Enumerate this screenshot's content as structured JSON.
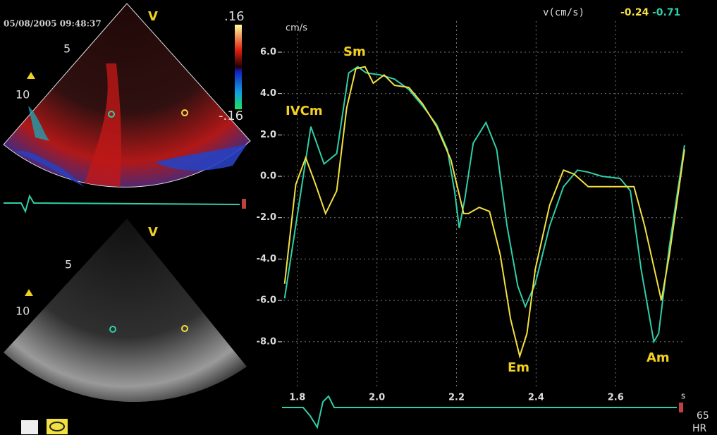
{
  "header": {
    "timestamp": "05/08/2005 09:48:37"
  },
  "color_panel": {
    "mode": "V",
    "scale_top": ".16",
    "scale_bottom": "-.16",
    "depth_labels": [
      "5",
      "10"
    ]
  },
  "gray_panel": {
    "mode": "V",
    "depth_labels": [
      "5",
      "10"
    ]
  },
  "readout": {
    "label": "v(cm/s)",
    "values": [
      "-0.24",
      "-0.71"
    ],
    "colors": [
      "#f2e040",
      "#2fcfa8"
    ]
  },
  "heart_rate": {
    "value": "65",
    "label": "HR"
  },
  "chart_data": {
    "type": "line",
    "y_label": "cm/s",
    "x_label": "s",
    "xlim": [
      1.765,
      2.775
    ],
    "ylim": [
      -9.2,
      7.5
    ],
    "xticks": [
      1.8,
      {
        "value": 2,
        "label": "2.0"
      },
      2.2,
      2.4,
      2.6
    ],
    "yticks": [
      {
        "value": 6,
        "label": "6.0"
      },
      {
        "value": 4,
        "label": "4.0"
      },
      {
        "value": 2,
        "label": "2.0"
      },
      {
        "value": 0,
        "label": "0.0"
      },
      {
        "value": -2,
        "label": "-2.0"
      },
      {
        "value": -4,
        "label": "-4.0"
      },
      {
        "value": -6,
        "label": "-6.0"
      },
      {
        "value": -8,
        "label": "-8.0"
      }
    ],
    "grid": true,
    "annotations": [
      "IVCm",
      "Sm",
      "Em",
      "Am"
    ],
    "series": [
      {
        "color": "#2fcfa8",
        "x": [
          1.768,
          1.834,
          1.867,
          1.899,
          1.929,
          1.952,
          1.973,
          2.009,
          2.044,
          2.08,
          2.115,
          2.15,
          2.177,
          2.195,
          2.207,
          2.221,
          2.242,
          2.274,
          2.301,
          2.327,
          2.354,
          2.373,
          2.398,
          2.434,
          2.469,
          2.504,
          2.531,
          2.566,
          2.611,
          2.637,
          2.664,
          2.696,
          2.708,
          2.735,
          2.773
        ],
        "values": [
          -5.9,
          2.4,
          0.6,
          1.1,
          5.0,
          5.3,
          5.0,
          4.9,
          4.7,
          4.2,
          3.4,
          2.5,
          1.3,
          -0.7,
          -2.5,
          -1.1,
          1.6,
          2.6,
          1.3,
          -2.4,
          -5.3,
          -6.3,
          -5.2,
          -2.4,
          -0.5,
          0.3,
          0.2,
          0,
          -0.1,
          -0.7,
          -4.5,
          -8.0,
          -7.6,
          -3.4,
          1.5
        ]
      },
      {
        "color": "#f2e040",
        "x": [
          1.768,
          1.796,
          1.821,
          1.846,
          1.871,
          1.899,
          1.924,
          1.947,
          1.97,
          1.991,
          2.018,
          2.044,
          2.08,
          2.115,
          2.15,
          2.186,
          2.218,
          2.23,
          2.257,
          2.283,
          2.31,
          2.336,
          2.359,
          2.377,
          2.398,
          2.434,
          2.469,
          2.496,
          2.531,
          2.575,
          2.646,
          2.673,
          2.715,
          2.735,
          2.773
        ],
        "values": [
          -5.2,
          -0.4,
          0.9,
          -0.4,
          -1.8,
          -0.7,
          3.3,
          5.2,
          5.3,
          4.5,
          4.9,
          4.4,
          4.3,
          3.5,
          2.4,
          0.8,
          -1.8,
          -1.8,
          -1.5,
          -1.7,
          -3.8,
          -6.9,
          -8.7,
          -7.6,
          -4.5,
          -1.4,
          0.3,
          0.1,
          -0.5,
          -0.5,
          -0.5,
          -2.4,
          -6.0,
          -3.8,
          1.3
        ]
      }
    ]
  }
}
